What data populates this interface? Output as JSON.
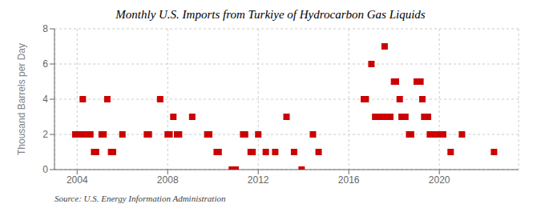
{
  "chart_data": {
    "type": "scatter",
    "title": "Monthly U.S. Imports from Turkiye of Hydrocarbon Gas Liquids",
    "y_label": "Thousand Barrels per Day",
    "annotation": "Source: U.S. Energy Information Administration",
    "color": "#cc0000",
    "marker": "square",
    "grid": true,
    "xlim": [
      2003,
      2023.5
    ],
    "xticks": [
      2004,
      2008,
      2012,
      2016,
      2020
    ],
    "ylim": [
      0,
      8
    ],
    "yticks": [
      0,
      2,
      4,
      6,
      8
    ],
    "x": [
      2003.9166666666667,
      2004,
      2004.0833333333333,
      2004.1666666666667,
      2004.25,
      2004.3333333333333,
      2004.4166666666667,
      2004.5,
      2004.5833333333333,
      2004.75,
      2004.8333333333333,
      2005.0833333333333,
      2005.1666666666667,
      2005.3333333333333,
      2005.5,
      2005.5833333333333,
      2006,
      2007.0833333333333,
      2007.1666666666667,
      2007.6666666666667,
      2008,
      2008.0833333333333,
      2008.25,
      2008.4166666666667,
      2008.5,
      2009.0833333333333,
      2009.75,
      2009.8333333333333,
      2010.1666666666667,
      2010.25,
      2010.8333333333333,
      2010.9166666666667,
      2011,
      2011.3333333333333,
      2011.4166666666667,
      2011.6666666666667,
      2011.75,
      2012,
      2012.3333333333333,
      2012.75,
      2013.25,
      2013.5833333333333,
      2013.9166666666667,
      2014.4166666666667,
      2014.6666666666667,
      2016.6666666666667,
      2016.75,
      2017,
      2017.1666666666667,
      2017.3333333333333,
      2017.4166666666667,
      2017.5,
      2017.5833333333333,
      2017.75,
      2017.8333333333333,
      2018,
      2018.0833333333333,
      2018.25,
      2018.3333333333333,
      2018.4166666666667,
      2018.5,
      2018.6666666666667,
      2018.75,
      2019,
      2019.1666666666667,
      2019.25,
      2019.3333333333333,
      2019.4166666666667,
      2019.5,
      2019.5833333333333,
      2019.6666666666667,
      2019.75,
      2019.8333333333333,
      2020,
      2020.1666666666667,
      2020.5,
      2021,
      2022.4166666666667
    ],
    "values": [
      2,
      2,
      2,
      2,
      4,
      2,
      2,
      2,
      2,
      1,
      1,
      2,
      2,
      4,
      1,
      1,
      2,
      2,
      2,
      4,
      2,
      2,
      3,
      2,
      2,
      3,
      2,
      2,
      1,
      1,
      0,
      0,
      0,
      2,
      2,
      1,
      1,
      2,
      1,
      1,
      3,
      1,
      0,
      2,
      1,
      4,
      4,
      6,
      3,
      3,
      3,
      3,
      7,
      3,
      3,
      5,
      5,
      4,
      3,
      3,
      3,
      2,
      2,
      5,
      5,
      4,
      3,
      3,
      3,
      2,
      2,
      2,
      2,
      2,
      2,
      1,
      2,
      1
    ]
  }
}
